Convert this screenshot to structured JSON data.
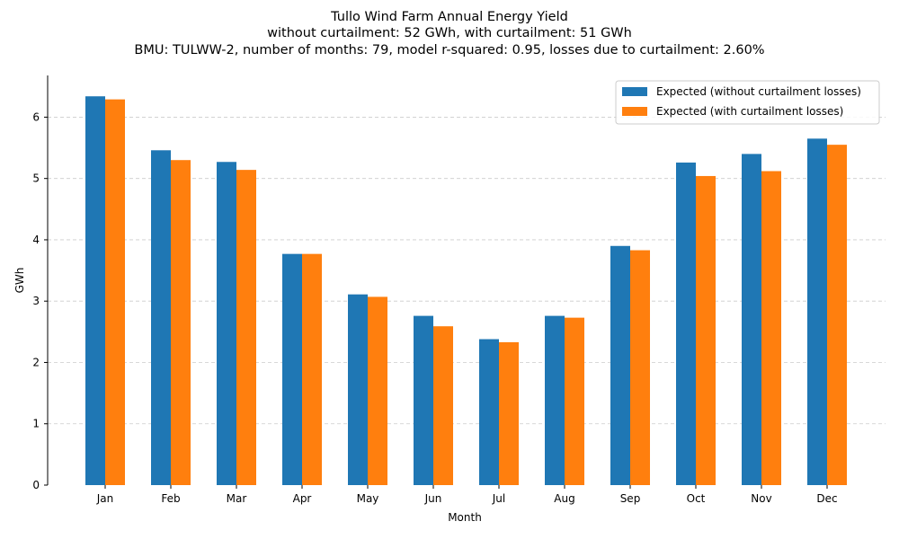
{
  "chart_data": {
    "type": "bar",
    "title": "Tullo Wind Farm Annual Energy Yield",
    "subtitle_lines": [
      "without curtailment: 52 GWh, with curtailment: 51 GWh",
      "BMU: TULWW-2, number of months: 79, model r-squared: 0.95, losses due to curtailment: 2.60%"
    ],
    "xlabel": "Month",
    "ylabel": "GWh",
    "ylim": [
      0,
      6.68
    ],
    "yticks": [
      0,
      1,
      2,
      3,
      4,
      5,
      6
    ],
    "grid": "y-dashed",
    "legend_position": "top-right",
    "categories": [
      "Jan",
      "Feb",
      "Mar",
      "Apr",
      "May",
      "Jun",
      "Jul",
      "Aug",
      "Sep",
      "Oct",
      "Nov",
      "Dec"
    ],
    "series": [
      {
        "name": "Expected (without curtailment losses)",
        "color": "#1f77b4",
        "values": [
          6.34,
          5.46,
          5.27,
          3.77,
          3.11,
          2.76,
          2.38,
          2.76,
          3.9,
          5.26,
          5.4,
          5.65
        ]
      },
      {
        "name": "Expected (with curtailment losses)",
        "color": "#ff7f0e",
        "values": [
          6.29,
          5.3,
          5.14,
          3.77,
          3.07,
          2.59,
          2.33,
          2.73,
          3.83,
          5.04,
          5.12,
          5.55
        ]
      }
    ]
  }
}
